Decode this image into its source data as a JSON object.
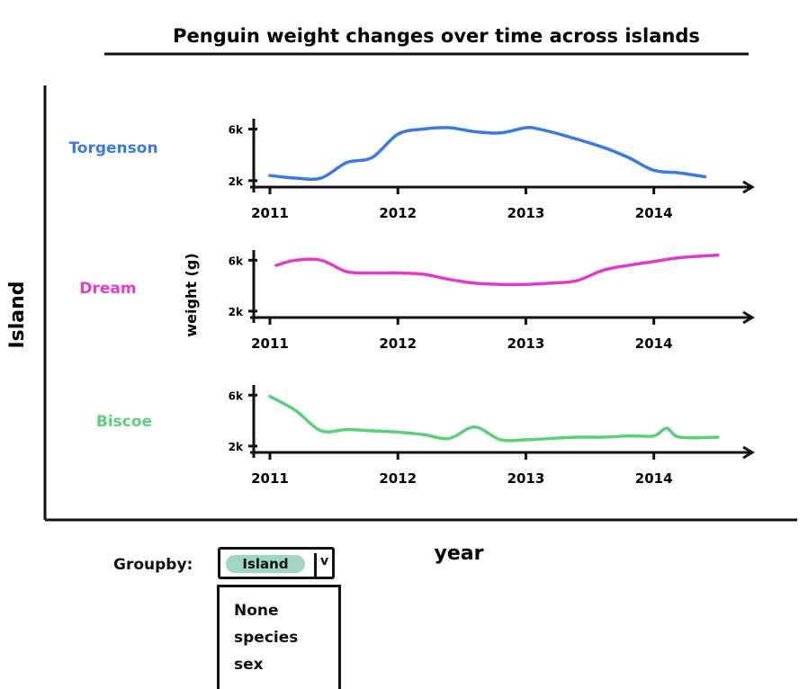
{
  "chart_data": {
    "type": "line",
    "title": "Penguin weight changes over time across islands",
    "xlabel": "year",
    "ylabel": "weight (g)",
    "group_axis_label": "Island",
    "grid": false,
    "panels": [
      {
        "name": "Torgenson",
        "color": "#3b7be0",
        "y_ticks": [
          "6k",
          "2k"
        ],
        "y_tick_values": [
          6000,
          2000
        ],
        "ylim": [
          1500,
          6800
        ],
        "x_ticks": [
          "2011",
          "2012",
          "2013",
          "2014"
        ],
        "x": [
          2011.0,
          2011.2,
          2011.4,
          2011.6,
          2011.8,
          2012.0,
          2012.2,
          2012.4,
          2012.6,
          2012.8,
          2013.0,
          2013.1,
          2013.3,
          2013.6,
          2013.8,
          2014.0,
          2014.2,
          2014.4
        ],
        "values": [
          2400,
          2200,
          2200,
          3400,
          3800,
          5600,
          6000,
          6100,
          5800,
          5700,
          6100,
          6000,
          5500,
          4600,
          3800,
          2800,
          2600,
          2300
        ]
      },
      {
        "name": "Dream",
        "color": "#e03ccb",
        "y_ticks": [
          "6k",
          "2k"
        ],
        "y_tick_values": [
          6000,
          2000
        ],
        "ylim": [
          1500,
          6800
        ],
        "x_ticks": [
          "2011",
          "2012",
          "2013",
          "2014"
        ],
        "x": [
          2011.05,
          2011.2,
          2011.4,
          2011.6,
          2011.8,
          2012.0,
          2012.2,
          2012.4,
          2012.6,
          2012.8,
          2013.0,
          2013.2,
          2013.4,
          2013.6,
          2013.8,
          2014.0,
          2014.2,
          2014.5
        ],
        "values": [
          5600,
          6000,
          6000,
          5100,
          5000,
          5000,
          4900,
          4500,
          4200,
          4100,
          4100,
          4200,
          4400,
          5200,
          5600,
          5900,
          6200,
          6400
        ]
      },
      {
        "name": "Biscoe",
        "color": "#5ccf7a",
        "y_ticks": [
          "6k",
          "2k"
        ],
        "y_tick_values": [
          6000,
          2000
        ],
        "ylim": [
          1500,
          6800
        ],
        "x_ticks": [
          "2011",
          "2012",
          "2013",
          "2014"
        ],
        "x": [
          2011.0,
          2011.2,
          2011.4,
          2011.6,
          2011.8,
          2012.0,
          2012.2,
          2012.4,
          2012.6,
          2012.8,
          2013.0,
          2013.2,
          2013.4,
          2013.6,
          2013.8,
          2014.0,
          2014.1,
          2014.2,
          2014.5
        ],
        "values": [
          5900,
          4800,
          3200,
          3300,
          3200,
          3100,
          2900,
          2600,
          3500,
          2500,
          2500,
          2600,
          2700,
          2700,
          2800,
          2800,
          3400,
          2700,
          2700
        ]
      }
    ]
  },
  "controls": {
    "groupby_label": "Groupby:",
    "groupby_value": "Island",
    "groupby_arrow": "v",
    "groupby_options": [
      "None",
      "species",
      "sex"
    ]
  }
}
